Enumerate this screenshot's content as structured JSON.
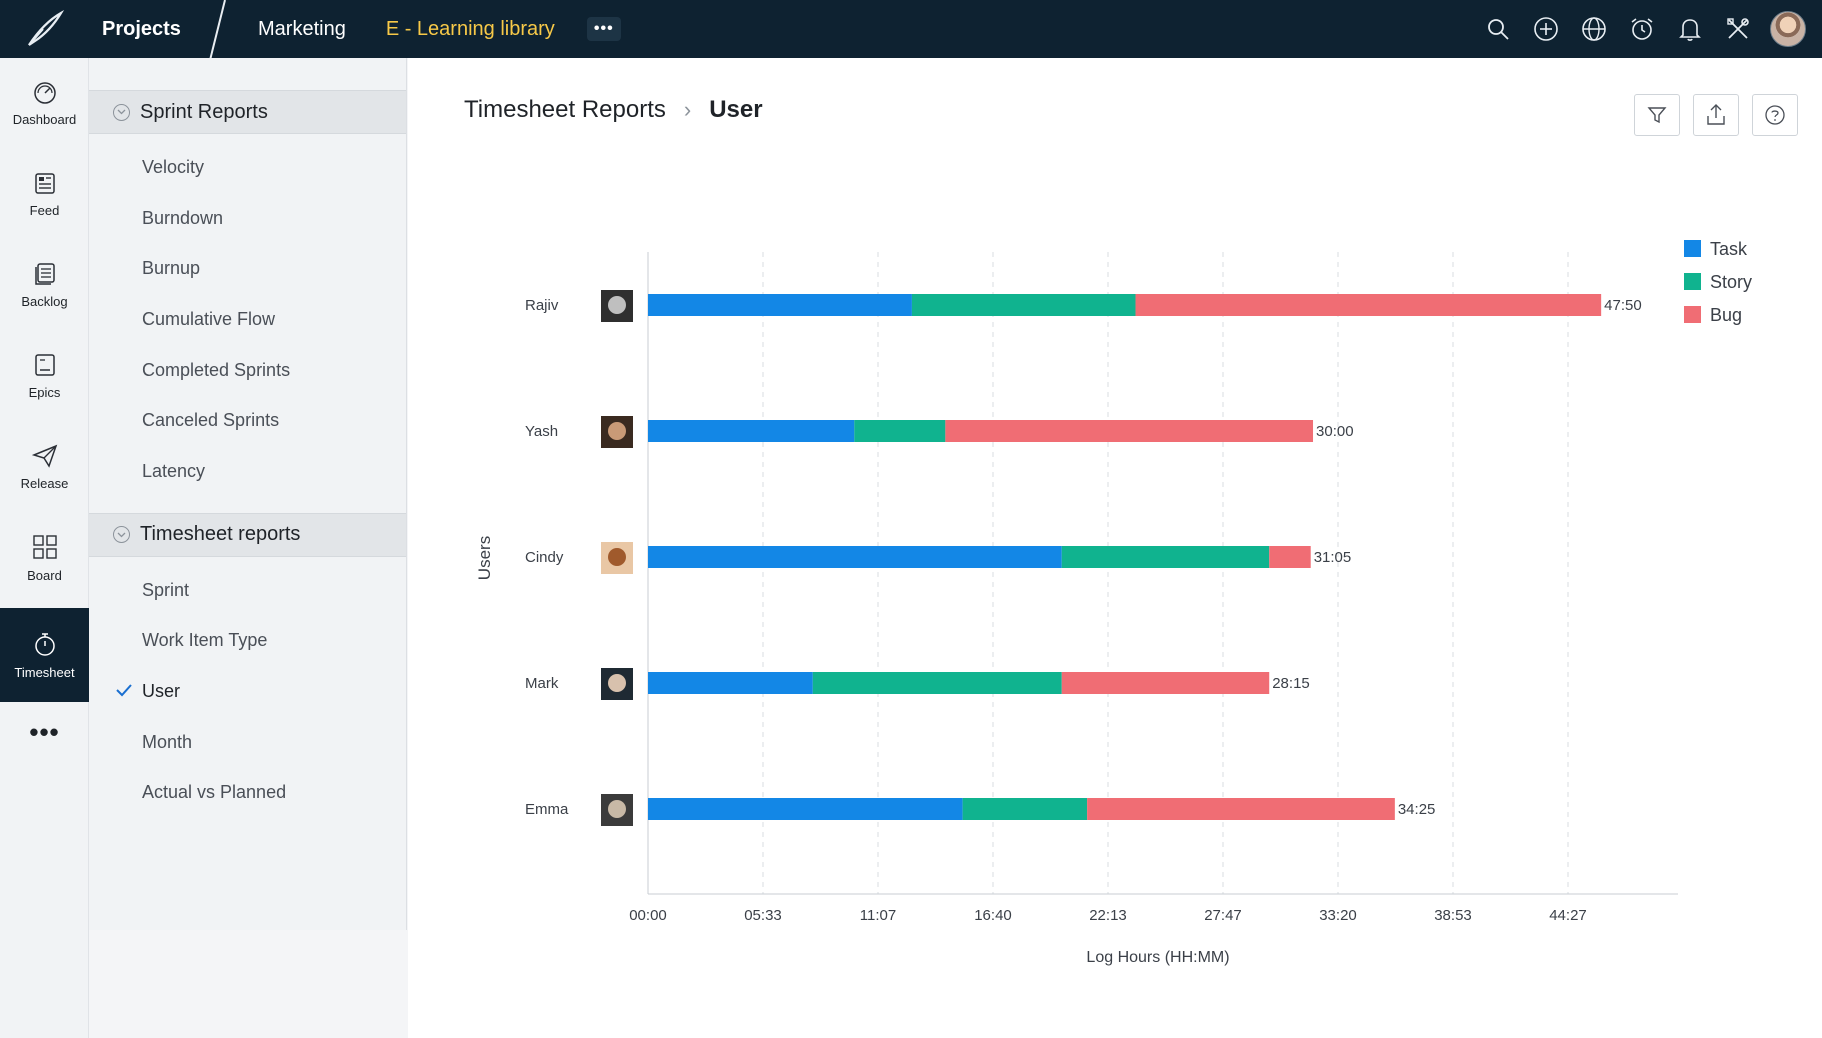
{
  "topbar": {
    "logo_icon": "brand-quill-icon",
    "project_label": "Projects",
    "tabs": [
      {
        "label": "Marketing",
        "active": false
      },
      {
        "label": "E - Learning library",
        "active": true
      }
    ],
    "more_label": "•••",
    "icons": [
      "search-icon",
      "add-icon",
      "globe-icon",
      "alarm-icon",
      "bell-icon",
      "tools-icon"
    ]
  },
  "rail": {
    "items": [
      {
        "label": "Dashboard",
        "icon": "gauge-icon"
      },
      {
        "label": "Feed",
        "icon": "feed-icon"
      },
      {
        "label": "Backlog",
        "icon": "backlog-icon"
      },
      {
        "label": "Epics",
        "icon": "epics-icon"
      },
      {
        "label": "Release",
        "icon": "paper-plane-icon"
      },
      {
        "label": "Board",
        "icon": "board-icon"
      },
      {
        "label": "Timesheet",
        "icon": "stopwatch-icon",
        "active": true
      }
    ],
    "more_label": "•••"
  },
  "reports": {
    "sections": [
      {
        "title": "Sprint Reports",
        "items": [
          "Velocity",
          "Burndown",
          "Burnup",
          "Cumulative Flow",
          "Completed Sprints",
          "Canceled Sprints",
          "Latency"
        ]
      },
      {
        "title": "Timesheet reports",
        "items": [
          "Sprint",
          "Work Item Type",
          "User",
          "Month",
          "Actual vs Planned"
        ],
        "selected": "User"
      }
    ]
  },
  "main": {
    "breadcrumb": {
      "root": "Timesheet Reports",
      "separator": "›",
      "current": "User"
    },
    "toolbar": [
      "filter-icon",
      "export-icon",
      "help-icon"
    ]
  },
  "chart_data": {
    "type": "bar",
    "orientation": "horizontal",
    "stacked": true,
    "categories": [
      "Rajiv",
      "Yash",
      "Cindy",
      "Mark",
      "Emma"
    ],
    "series": [
      {
        "name": "Task",
        "color": "#1387e6",
        "values": [
          22.9,
          17.9,
          35.9,
          14.3,
          27.3
        ]
      },
      {
        "name": "Story",
        "color": "#10b38f",
        "values": [
          19.4,
          7.9,
          18.0,
          21.6,
          10.8
        ]
      },
      {
        "name": "Bug",
        "color": "#f06d74",
        "values": [
          40.4,
          31.9,
          3.6,
          18.0,
          26.7
        ]
      }
    ],
    "totals": [
      "47:50",
      "30:00",
      "31:05",
      "28:15",
      "34:25"
    ],
    "x_ticks": [
      "00:00",
      "05:33",
      "11:07",
      "16:40",
      "22:13",
      "27:47",
      "33:20",
      "38:53",
      "44:27"
    ],
    "xlabel": "Log Hours (HH:MM)",
    "ylabel": "Users",
    "xlim": [
      0,
      88.5
    ],
    "grid": "vertical dashed",
    "legend": "top-right"
  }
}
